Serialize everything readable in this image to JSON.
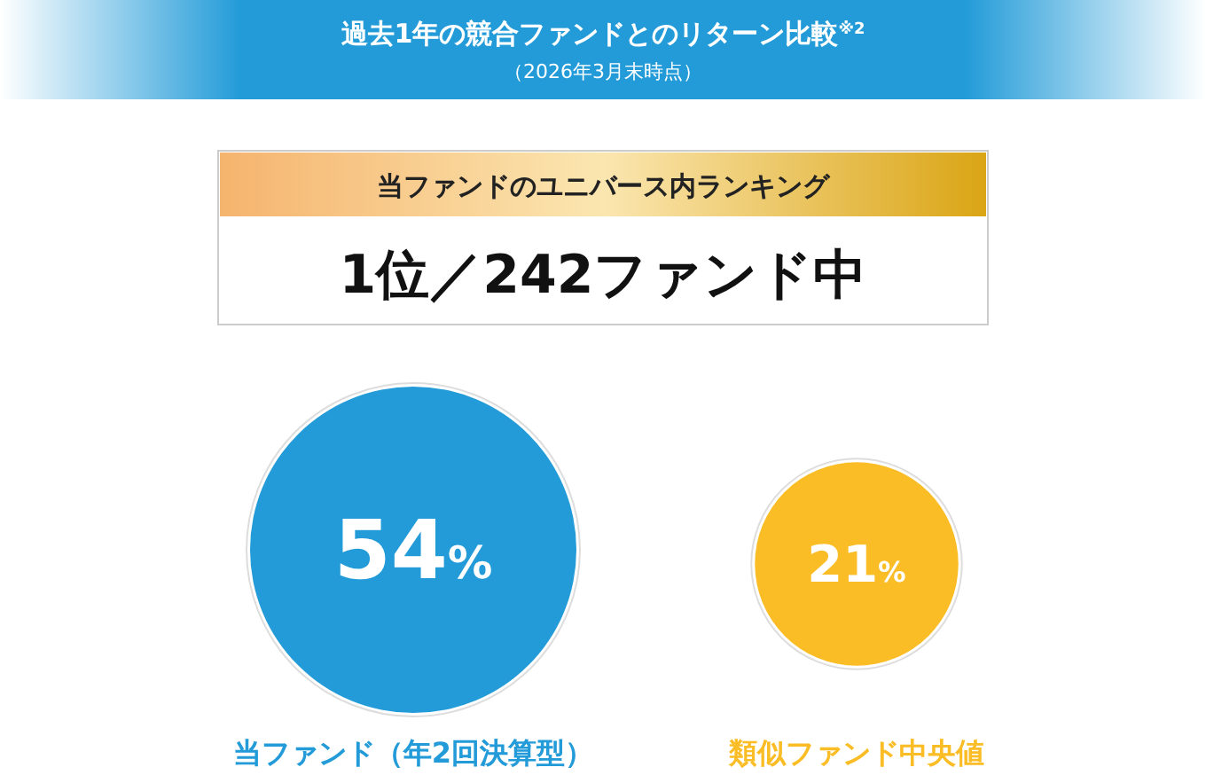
{
  "chart_data": {
    "type": "other",
    "title": "過去1年の競合ファンドとのリターン比較$^{※2}$",
    "subtitle": "（2026年3月末時点）",
    "annotations": [
      "当ファンドのユニバース内ランキング",
      "1位／242ファンド中"
    ],
    "categories": [
      "当ファンド（年2回決算型）",
      "類似ファンド中央値"
    ],
    "values": [
      54,
      21
    ],
    "value_labels": [
      "54%",
      "21%"
    ],
    "colors": [
      "#229bd8",
      "#fbbd26"
    ]
  }
}
